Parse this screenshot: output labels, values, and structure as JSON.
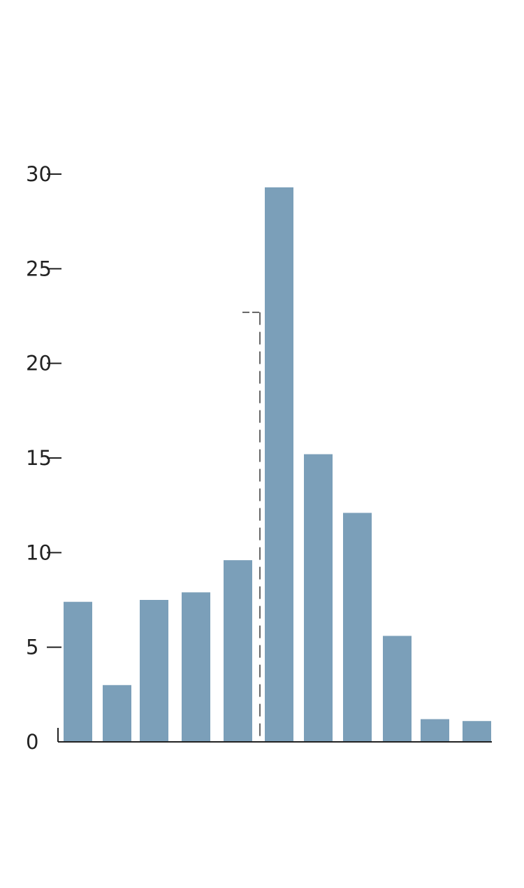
{
  "chart_data": {
    "type": "bar",
    "title": "",
    "xlabel": "",
    "ylabel": "",
    "ylim": [
      0,
      30
    ],
    "yticks": [
      {
        "value": 0,
        "label": "0"
      },
      {
        "value": 5,
        "label": "5"
      },
      {
        "value": 10,
        "label": "10"
      },
      {
        "value": 15,
        "label": "15"
      },
      {
        "value": 20,
        "label": "20"
      },
      {
        "value": 25,
        "label": "25"
      },
      {
        "value": 30,
        "label": "30"
      }
    ],
    "values": [
      7.4,
      3.0,
      7.5,
      7.9,
      9.6,
      29.3,
      15.2,
      12.1,
      5.6,
      1.2,
      1.1
    ],
    "reference_line": {
      "level": 22.7,
      "style": "dashed"
    },
    "grid": false,
    "bar_color": "#7b9fb9",
    "axis_color": "#222222"
  }
}
